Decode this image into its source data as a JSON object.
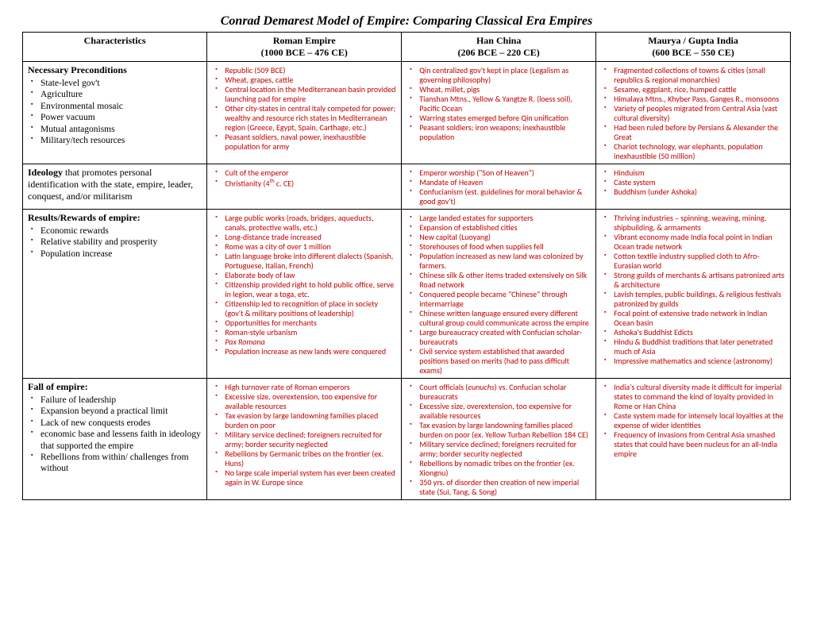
{
  "title": "Conrad Demarest Model of Empire: Comparing Classical Era Empires",
  "headers": {
    "characteristics": "Characteristics",
    "roman": "Roman Empire",
    "roman_dates": "(1000 BCE – 476 CE)",
    "han": "Han China",
    "han_dates": "(206 BCE – 220 CE)",
    "india": "Maurya / Gupta India",
    "india_dates": "(600 BCE – 550 CE)"
  },
  "rows": [
    {
      "char_heading": "Necessary Preconditions",
      "char_items": [
        "State-level gov't",
        "Agriculture",
        "Environmental mosaic",
        "Power vacuum",
        "Mutual antagonisms",
        "Military/tech resources"
      ],
      "roman": [
        "Republic (509 BCE)",
        "Wheat, grapes, cattle",
        "Central location in the Mediterranean basin provided launching pad for empire",
        "Other city-states in central Italy competed for power; wealthy and resource rich states in Mediterranean region (Greece, Egypt, Spain, Carthage, etc.)",
        "Peasant soldiers, naval power, inexhaustible population for army"
      ],
      "han": [
        "Qin centralized gov't kept in place (Legalism as governing philosophy)",
        "Wheat, millet, pigs",
        "Tianshan Mtns., Yellow & Yangtze R. (loess soil), Pacific Ocean",
        "Warring states emerged before Qin unification",
        "Peasant soldiers; iron weapons; inexhaustible population"
      ],
      "india": [
        "Fragmented collections of towns & cities (small republics & regional monarchies)",
        "Sesame, eggplant, rice, humped cattle",
        "Himalaya Mtns., Khyber Pass, Ganges R., monsoons",
        "Variety of peoples migrated from Central Asia (vast cultural diversity)",
        "Had been ruled before by Persians & Alexander the Great",
        "Chariot technology, war elephants, population inexhaustible (50 million)"
      ]
    },
    {
      "char_text": "<span class='ideology-bold'>Ideology</span> that promotes personal identification with the state, empire, leader, conquest, and/or militarism",
      "roman": [
        "Cult of the emperor",
        "Christianity (4<sup>th</sup> c. CE)"
      ],
      "han": [
        "Emperor worship (\"Son of Heaven\")",
        "Mandate of Heaven",
        "Confucianism (est. guidelines for moral behavior & good gov't)"
      ],
      "india": [
        "Hinduism",
        "Caste system",
        "Buddhism (under Ashoka)"
      ]
    },
    {
      "char_heading": "Results/Rewards of empire:",
      "char_items": [
        "Economic rewards",
        "Relative stability and prosperity",
        "Population increase"
      ],
      "roman": [
        "Large public works (roads, bridges, aqueducts, canals, protective walls, etc.)",
        "Long-distance trade increased",
        "Rome was a city of over 1 million",
        "Latin language broke into different dialects (Spanish, Portuguese, Italian, French)",
        "Elaborate body of law",
        "Citizenship provided right to hold public office, serve in legion, wear a toga, etc.",
        "Citizenship led to recognition of place in society (gov't & military positions of leadership)",
        "Opportunities for merchants",
        "Roman-style urbanism",
        "<em>Pax Romana</em>",
        "Population increase as new lands were conquered"
      ],
      "han": [
        "Large landed estates for supporters",
        "Expansion of established cities",
        "New capital (Luoyang)",
        "Storehouses of food when supplies fell",
        "Population increased as new land was colonized by farmers.",
        "Chinese silk & other items traded extensively on Silk Road network",
        "Conquered people became \"Chinese\" through intermarriage",
        "Chinese written language ensured every different cultural group could communicate across the empire",
        "Large bureaucracy created with Confucian scholar-bureaucrats",
        "Civil service system established that awarded positions based on merits (had to pass difficult exams)"
      ],
      "india": [
        "Thriving industries – spinning, weaving, mining, shipbuilding, & armaments",
        "Vibrant economy made India focal point in Indian Ocean trade network",
        "Cotton textile industry supplied cloth to Afro-Eurasian world",
        "Strong guilds of merchants & artisans patronized arts & architecture",
        "Lavish temples, public buildings, & religious festivals patronized by guilds",
        "Focal point of extensive trade network  in Indian Ocean basin",
        "Ashoka's Buddhist Edicts",
        "Hindu & Buddhist traditions that later penetrated much of Asia",
        "Impressive mathematics and science (astronomy)"
      ]
    },
    {
      "char_heading": "Fall of empire:",
      "char_items": [
        "Failure of leadership",
        "Expansion beyond a practical limit",
        "Lack of new conquests erodes",
        "economic base and lessens faith in ideology that supported the empire",
        "Rebellions from within/ challenges from without"
      ],
      "roman": [
        "High turnover rate of Roman emperors",
        "Excessive size, overextension, too expensive for available resources",
        "Tax evasion by large landowning families placed burden on poor",
        "Military service declined; foreigners recruited for army; border security neglected",
        "Rebellions by Germanic tribes on the frontier (ex. Huns)",
        "No large scale imperial system has ever been created again in W. Europe since"
      ],
      "han": [
        "Court officials (<em>eunuchs</em>) vs. Confucian scholar bureaucrats",
        "Excessive size, overextension, too expensive for available resources",
        "Tax evasion by large landowning families placed burden on poor (ex. Yellow Turban Rebellion 184 CE)",
        "Military service declined; foreigners recruited for army; border security neglected",
        "Rebellions by nomadic tribes on the frontier (ex. Xiongnu)",
        "350 yrs. of disorder then creation of new imperial state (Sui, Tang, & Song)"
      ],
      "india": [
        "India's cultural diversity made it difficult for imperial states to command the kind of loyalty provided in Rome or Han China",
        "Caste system made for intensely local loyalties at the expense of wider identities",
        "Frequency of invasions from Central Asia smashed states that could have been nucleus for an all-India empire"
      ]
    }
  ]
}
